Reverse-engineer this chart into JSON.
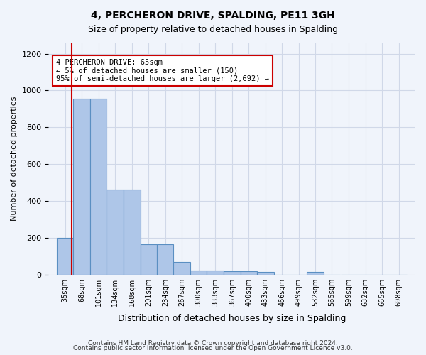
{
  "title": "4, PERCHERON DRIVE, SPALDING, PE11 3GH",
  "subtitle": "Size of property relative to detached houses in Spalding",
  "xlabel": "Distribution of detached houses by size in Spalding",
  "ylabel": "Number of detached properties",
  "footer_line1": "Contains HM Land Registry data © Crown copyright and database right 2024.",
  "footer_line2": "Contains public sector information licensed under the Open Government Licence v3.0.",
  "bar_color": "#aec6e8",
  "bar_edge_color": "#5a8fc2",
  "grid_color": "#d0d8e8",
  "background_color": "#f0f4fb",
  "annotation_box_color": "#cc0000",
  "annotation_text": "4 PERCHERON DRIVE: 65sqm\n← 5% of detached houses are smaller (150)\n95% of semi-detached houses are larger (2,692) →",
  "red_line_x": 65,
  "categories": [
    "35sqm",
    "68sqm",
    "101sqm",
    "134sqm",
    "168sqm",
    "201sqm",
    "234sqm",
    "267sqm",
    "300sqm",
    "333sqm",
    "367sqm",
    "400sqm",
    "433sqm",
    "466sqm",
    "499sqm",
    "532sqm",
    "565sqm",
    "599sqm",
    "632sqm",
    "665sqm",
    "698sqm"
  ],
  "bin_edges": [
    35,
    68,
    101,
    134,
    168,
    201,
    234,
    267,
    300,
    333,
    367,
    400,
    433,
    466,
    499,
    532,
    565,
    599,
    632,
    665,
    698
  ],
  "bin_width": 33,
  "values": [
    200,
    955,
    955,
    460,
    460,
    163,
    163,
    68,
    22,
    22,
    18,
    18,
    13,
    0,
    0,
    13,
    0,
    0,
    0,
    0,
    0
  ],
  "ylim": [
    0,
    1260
  ],
  "yticks": [
    0,
    200,
    400,
    600,
    800,
    1000,
    1200
  ]
}
